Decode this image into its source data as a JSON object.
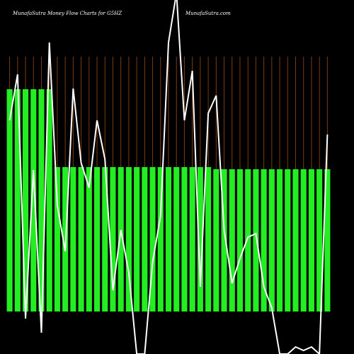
{
  "chart_data": {
    "type": "bar",
    "title": "MunafaSutra  Money Flow  Charts for G5HZ",
    "subtitle": "MunafaSutra.com",
    "categories": [
      null,
      null,
      null,
      null,
      null,
      null,
      null,
      null,
      null,
      null,
      null,
      null,
      null,
      null,
      null,
      null,
      null,
      null,
      null,
      null,
      null,
      null,
      null,
      null,
      null,
      null,
      null,
      null,
      null,
      null,
      null,
      null,
      null,
      null,
      null,
      null,
      null,
      null,
      null,
      null,
      null
    ],
    "series": [
      {
        "color": "#22ee22",
        "values": [
          314,
          314,
          314,
          314,
          314,
          314,
          204,
          204,
          204,
          204,
          204,
          204,
          204,
          204,
          204,
          204,
          204,
          204,
          204,
          204,
          204,
          204,
          204,
          204,
          204,
          204,
          201,
          201,
          201,
          201,
          201,
          201,
          201,
          201,
          201,
          201,
          201,
          201,
          201,
          201,
          201
        ]
      },
      {
        "color": "#ffffff",
        "type": "line",
        "values": [
          270,
          335,
          -10,
          200,
          -30,
          380,
          150,
          85,
          315,
          210,
          175,
          270,
          215,
          30,
          115,
          55,
          -60,
          -60,
          70,
          135,
          380,
          450,
          270,
          340,
          35,
          280,
          305,
          115,
          40,
          75,
          105,
          110,
          35,
          5,
          -60,
          -60,
          -50,
          -55,
          -50,
          -60,
          250
        ]
      }
    ],
    "ylim": [
      -60,
      440
    ],
    "grid": true,
    "grid_color": "#7a3d10"
  }
}
